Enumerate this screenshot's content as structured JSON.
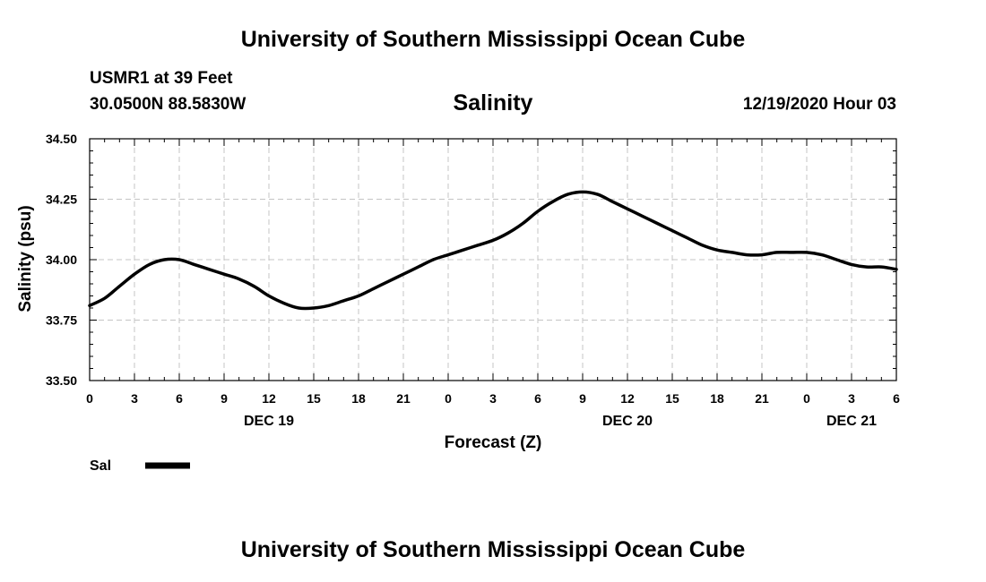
{
  "header": {
    "title": "University of Southern Mississippi Ocean Cube",
    "station": "USMR1 at 39 Feet",
    "coordinates": "30.0500N 88.5830W",
    "issued": "12/19/2020 Hour 03"
  },
  "footer": {
    "title": "University of Southern Mississippi Ocean Cube"
  },
  "chart_data": {
    "type": "line",
    "title": "Salinity",
    "xlabel": "Forecast (Z)",
    "ylabel": "Salinity (psu)",
    "ylim": [
      33.5,
      34.5
    ],
    "yticks": [
      "33.50",
      "33.75",
      "34.00",
      "34.25",
      "34.50"
    ],
    "xlim": [
      0,
      54
    ],
    "xtick_labels": [
      "0",
      "3",
      "6",
      "9",
      "12",
      "15",
      "18",
      "21",
      "0",
      "3",
      "6",
      "9",
      "12",
      "15",
      "18",
      "21",
      "0",
      "3",
      "6"
    ],
    "day_labels": [
      {
        "label": "DEC 19",
        "at": 12
      },
      {
        "label": "DEC 20",
        "at": 36
      },
      {
        "label": "DEC 21",
        "at": 51
      }
    ],
    "grid": true,
    "legend": {
      "position": "bottom-left",
      "entries": [
        "Sal"
      ]
    },
    "series": [
      {
        "name": "Sal",
        "color": "#000000",
        "x": [
          0,
          1,
          2,
          3,
          4,
          5,
          6,
          7,
          8,
          9,
          10,
          11,
          12,
          13,
          14,
          15,
          16,
          17,
          18,
          19,
          20,
          21,
          22,
          23,
          24,
          25,
          26,
          27,
          28,
          29,
          30,
          31,
          32,
          33,
          34,
          35,
          36,
          37,
          38,
          39,
          40,
          41,
          42,
          43,
          44,
          45,
          46,
          47,
          48,
          49,
          50,
          51,
          52,
          53,
          54
        ],
        "values": [
          33.81,
          33.84,
          33.89,
          33.94,
          33.98,
          34.0,
          34.0,
          33.98,
          33.96,
          33.94,
          33.92,
          33.89,
          33.85,
          33.82,
          33.8,
          33.8,
          33.81,
          33.83,
          33.85,
          33.88,
          33.91,
          33.94,
          33.97,
          34.0,
          34.02,
          34.04,
          34.06,
          34.08,
          34.11,
          34.15,
          34.2,
          34.24,
          34.27,
          34.28,
          34.27,
          34.24,
          34.21,
          34.18,
          34.15,
          34.12,
          34.09,
          34.06,
          34.04,
          34.03,
          34.02,
          34.02,
          34.03,
          34.03,
          34.03,
          34.02,
          34.0,
          33.98,
          33.97,
          33.97,
          33.96
        ]
      }
    ]
  }
}
